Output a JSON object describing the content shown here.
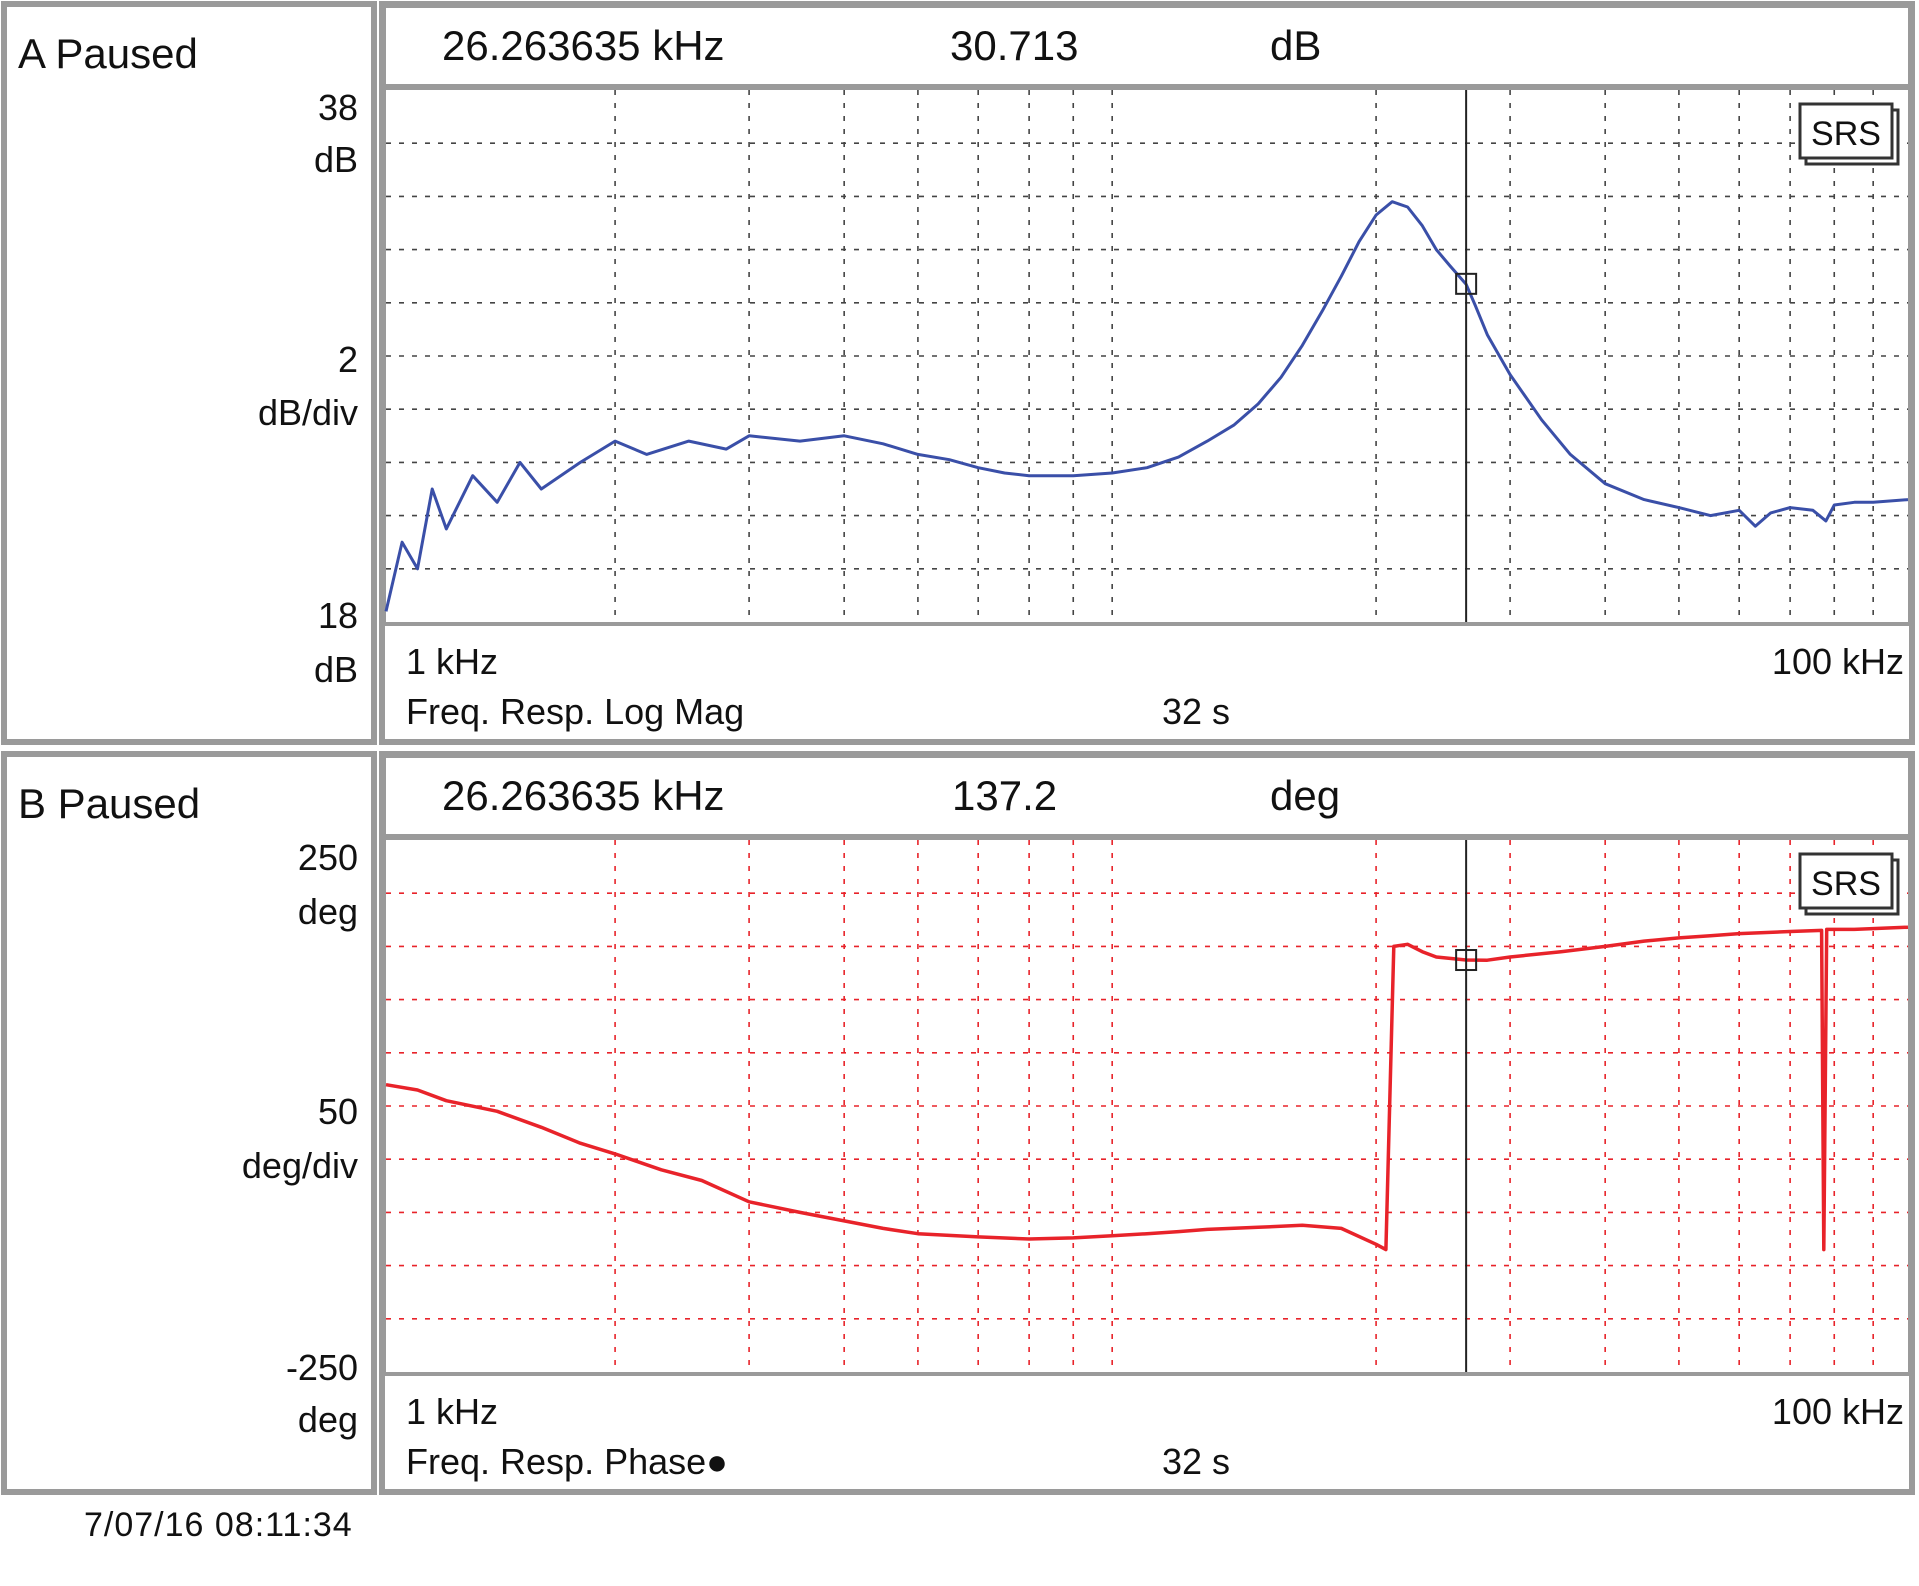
{
  "footer": {
    "timestamp": "7/07/16  08:11:34"
  },
  "panels": [
    {
      "id": "A",
      "status": "A Paused",
      "readout": {
        "frequency": "26.263635 kHz",
        "value": "30.713",
        "unit": "dB"
      },
      "ytop_value": "38",
      "ytop_unit": "dB",
      "ydiv_value": "2",
      "ydiv_unit": "dB/div",
      "ybottom_value": "18",
      "ybottom_unit": "dB",
      "xstart": "1 kHz",
      "xend": "100 kHz",
      "measurement": "Freq. Resp. Log Mag",
      "time": "32 s",
      "badge": "SRS",
      "trace_color": "#3a4fa8",
      "grid_color": "#444444"
    },
    {
      "id": "B",
      "status": "B Paused",
      "readout": {
        "frequency": "26.263635 kHz",
        "value": "137.2",
        "unit": "deg"
      },
      "ytop_value": "250",
      "ytop_unit": "deg",
      "ydiv_value": "50",
      "ydiv_unit": "deg/div",
      "ybottom_value": "-250",
      "ybottom_unit": "deg",
      "xstart": "1 kHz",
      "xend": "100 kHz",
      "measurement": "Freq. Resp. Phase●",
      "time": "32 s",
      "badge": "SRS",
      "trace_color": "#e8232a",
      "grid_color": "#e8232a"
    }
  ],
  "chart_data": [
    {
      "type": "line",
      "title": "Freq. Resp. Log Mag",
      "xscale": "log",
      "xlim_hz": [
        1000,
        100000
      ],
      "ylim": [
        18,
        38
      ],
      "y_per_div": 2,
      "yunit": "dB",
      "cursor": {
        "x_hz": 26263.635,
        "y": 30.713
      },
      "series": [
        {
          "points": [
            [
              1000,
              18.4
            ],
            [
              1050,
              21.0
            ],
            [
              1100,
              20.0
            ],
            [
              1150,
              23.0
            ],
            [
              1200,
              21.5
            ],
            [
              1300,
              23.5
            ],
            [
              1400,
              22.5
            ],
            [
              1500,
              24.0
            ],
            [
              1600,
              23.0
            ],
            [
              1800,
              24.0
            ],
            [
              2000,
              24.8
            ],
            [
              2200,
              24.3
            ],
            [
              2500,
              24.8
            ],
            [
              2800,
              24.5
            ],
            [
              3000,
              25.0
            ],
            [
              3500,
              24.8
            ],
            [
              4000,
              25.0
            ],
            [
              4500,
              24.7
            ],
            [
              5000,
              24.3
            ],
            [
              5500,
              24.1
            ],
            [
              6000,
              23.8
            ],
            [
              6500,
              23.6
            ],
            [
              7000,
              23.5
            ],
            [
              8000,
              23.5
            ],
            [
              9000,
              23.6
            ],
            [
              10000,
              23.8
            ],
            [
              11000,
              24.2
            ],
            [
              12000,
              24.8
            ],
            [
              13000,
              25.4
            ],
            [
              14000,
              26.2
            ],
            [
              15000,
              27.2
            ],
            [
              16000,
              28.4
            ],
            [
              17000,
              29.7
            ],
            [
              18000,
              31.0
            ],
            [
              19000,
              32.3
            ],
            [
              20000,
              33.3
            ],
            [
              21000,
              33.8
            ],
            [
              22000,
              33.6
            ],
            [
              23000,
              32.9
            ],
            [
              24000,
              32.0
            ],
            [
              25000,
              31.4
            ],
            [
              26263.635,
              30.7
            ],
            [
              27000,
              29.9
            ],
            [
              28000,
              28.8
            ],
            [
              30000,
              27.3
            ],
            [
              33000,
              25.6
            ],
            [
              36000,
              24.3
            ],
            [
              40000,
              23.2
            ],
            [
              45000,
              22.6
            ],
            [
              50000,
              22.3
            ],
            [
              55000,
              22.0
            ],
            [
              60000,
              22.2
            ],
            [
              63000,
              21.6
            ],
            [
              66000,
              22.1
            ],
            [
              70000,
              22.3
            ],
            [
              75000,
              22.2
            ],
            [
              78000,
              21.8
            ],
            [
              80000,
              22.4
            ],
            [
              85000,
              22.5
            ],
            [
              90000,
              22.5
            ],
            [
              100000,
              22.6
            ]
          ]
        }
      ]
    },
    {
      "type": "line",
      "title": "Freq. Resp. Phase",
      "xscale": "log",
      "xlim_hz": [
        1000,
        100000
      ],
      "ylim": [
        -250,
        250
      ],
      "y_per_div": 50,
      "yunit": "deg",
      "cursor": {
        "x_hz": 26263.635,
        "y": 137.2
      },
      "series": [
        {
          "points": [
            [
              1000,
              20
            ],
            [
              1100,
              15
            ],
            [
              1200,
              5
            ],
            [
              1400,
              -5
            ],
            [
              1600,
              -20
            ],
            [
              1800,
              -35
            ],
            [
              2000,
              -45
            ],
            [
              2300,
              -60
            ],
            [
              2600,
              -70
            ],
            [
              3000,
              -90
            ],
            [
              3500,
              -100
            ],
            [
              4000,
              -108
            ],
            [
              4500,
              -115
            ],
            [
              5000,
              -120
            ],
            [
              6000,
              -123
            ],
            [
              7000,
              -125
            ],
            [
              8000,
              -124
            ],
            [
              9000,
              -122
            ],
            [
              10000,
              -120
            ],
            [
              11000,
              -118
            ],
            [
              12000,
              -116
            ],
            [
              14000,
              -114
            ],
            [
              16000,
              -112
            ],
            [
              18000,
              -115
            ],
            [
              20000,
              -130
            ],
            [
              20600,
              -135
            ],
            [
              21100,
              150
            ],
            [
              22000,
              152
            ],
            [
              23000,
              145
            ],
            [
              24000,
              140
            ],
            [
              26263.635,
              137.2
            ],
            [
              28000,
              137
            ],
            [
              30000,
              140
            ],
            [
              35000,
              145
            ],
            [
              40000,
              150
            ],
            [
              45000,
              155
            ],
            [
              50000,
              158
            ],
            [
              55000,
              160
            ],
            [
              60000,
              162
            ],
            [
              70000,
              164
            ],
            [
              77000,
              165
            ],
            [
              77500,
              -135
            ],
            [
              78200,
              166
            ],
            [
              85000,
              166
            ],
            [
              100000,
              168
            ]
          ]
        }
      ]
    }
  ]
}
